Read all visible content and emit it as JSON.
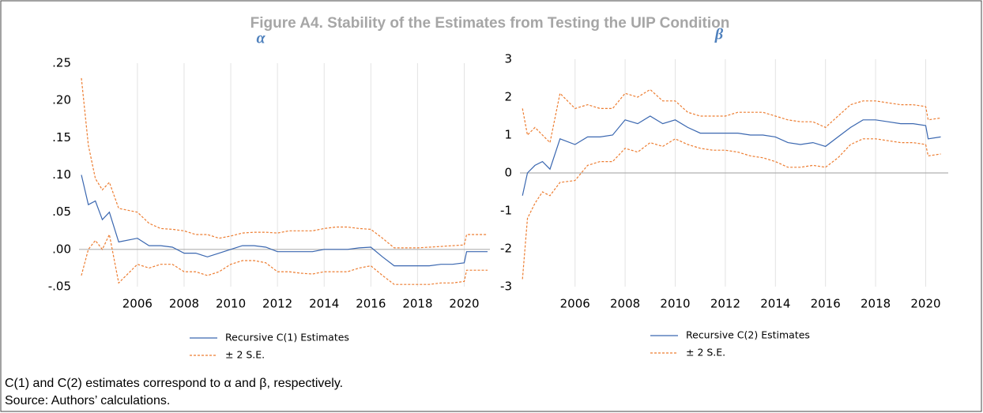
{
  "title": "Figure A4. Stability of the Estimates from Testing the UIP Condition",
  "notes": [
    "C(1) and C(2) estimates correspond to α and β, respectively.",
    "Source: Authors’ calculations."
  ],
  "chart_data": [
    {
      "type": "line",
      "title": "α",
      "x": [
        2003.6,
        2003.9,
        2004.2,
        2004.5,
        2004.8,
        2005.2,
        2006,
        2006.5,
        2007,
        2007.5,
        2008,
        2008.5,
        2009,
        2009.5,
        2010,
        2010.5,
        2011,
        2011.5,
        2012,
        2012.5,
        2013,
        2013.5,
        2014,
        2014.5,
        2015,
        2015.5,
        2016,
        2016.5,
        2017,
        2017.5,
        2018,
        2018.5,
        2019,
        2019.5,
        2020,
        2020.1,
        2021.0
      ],
      "series": [
        {
          "name": "Recursive C(1) Estimates",
          "color": "#3a67b0",
          "values": [
            0.1,
            0.06,
            0.065,
            0.04,
            0.05,
            0.01,
            0.015,
            0.005,
            0.005,
            0.003,
            -0.005,
            -0.005,
            -0.01,
            -0.005,
            0,
            0.005,
            0.005,
            0.003,
            -0.003,
            -0.003,
            -0.003,
            -0.003,
            0,
            0,
            0,
            0.002,
            0.003,
            -0.01,
            -0.022,
            -0.022,
            -0.022,
            -0.022,
            -0.02,
            -0.02,
            -0.018,
            -0.003,
            -0.003
          ]
        },
        {
          "name": "± 2 S.E.",
          "color": "#ed7d31",
          "upper": [
            0.23,
            0.14,
            0.095,
            0.08,
            0.09,
            0.055,
            0.05,
            0.035,
            0.028,
            0.027,
            0.025,
            0.02,
            0.02,
            0.015,
            0.018,
            0.022,
            0.023,
            0.023,
            0.022,
            0.025,
            0.025,
            0.025,
            0.028,
            0.03,
            0.03,
            0.028,
            0.027,
            0.015,
            0.002,
            0.002,
            0.002,
            0.003,
            0.004,
            0.005,
            0.006,
            0.02,
            0.02
          ],
          "lower": [
            -0.035,
            0.0,
            0.012,
            0.0,
            0.02,
            -0.045,
            -0.02,
            -0.025,
            -0.02,
            -0.02,
            -0.03,
            -0.03,
            -0.035,
            -0.03,
            -0.02,
            -0.015,
            -0.015,
            -0.018,
            -0.03,
            -0.03,
            -0.032,
            -0.033,
            -0.03,
            -0.03,
            -0.03,
            -0.025,
            -0.022,
            -0.035,
            -0.047,
            -0.047,
            -0.047,
            -0.047,
            -0.045,
            -0.045,
            -0.043,
            -0.028,
            -0.028
          ]
        }
      ],
      "xlim": [
        2003.5,
        2021.1
      ],
      "xticks": [
        2006,
        2008,
        2010,
        2012,
        2014,
        2016,
        2018,
        2020
      ],
      "ylim": [
        -0.05,
        0.25
      ],
      "yticks": [
        {
          "value": -0.05,
          "label": "-.05"
        },
        {
          "value": 0,
          "label": ".00"
        },
        {
          "value": 0.05,
          "label": ".05"
        },
        {
          "value": 0.1,
          "label": ".10"
        },
        {
          "value": 0.15,
          "label": ".15"
        },
        {
          "value": 0.2,
          "label": ".20"
        },
        {
          "value": 0.25,
          "label": ".25"
        }
      ],
      "grid": "x",
      "zero_line": true
    },
    {
      "type": "line",
      "title": "β",
      "x": [
        2003.9,
        2004.1,
        2004.4,
        2004.7,
        2005.0,
        2005.4,
        2006,
        2006.5,
        2007,
        2007.5,
        2008,
        2008.5,
        2009,
        2009.5,
        2010,
        2010.5,
        2011,
        2011.5,
        2012,
        2012.5,
        2013,
        2013.5,
        2014,
        2014.5,
        2015,
        2015.5,
        2016,
        2016.5,
        2017,
        2017.5,
        2018,
        2018.5,
        2019,
        2019.5,
        2020,
        2020.1,
        2020.6
      ],
      "series": [
        {
          "name": "Recursive C(2) Estimates",
          "color": "#3a67b0",
          "values": [
            -0.6,
            0.0,
            0.2,
            0.3,
            0.1,
            0.9,
            0.75,
            0.95,
            0.95,
            1.0,
            1.4,
            1.3,
            1.5,
            1.3,
            1.4,
            1.2,
            1.05,
            1.05,
            1.05,
            1.05,
            1.0,
            1.0,
            0.95,
            0.8,
            0.75,
            0.8,
            0.7,
            0.95,
            1.2,
            1.4,
            1.4,
            1.35,
            1.3,
            1.3,
            1.25,
            0.9,
            0.95
          ]
        },
        {
          "name": "± 2 S.E.",
          "color": "#ed7d31",
          "upper": [
            1.7,
            1.0,
            1.2,
            1.0,
            0.8,
            2.1,
            1.7,
            1.8,
            1.7,
            1.7,
            2.1,
            2.0,
            2.2,
            1.9,
            1.9,
            1.6,
            1.5,
            1.5,
            1.5,
            1.6,
            1.6,
            1.6,
            1.5,
            1.4,
            1.35,
            1.35,
            1.2,
            1.5,
            1.8,
            1.9,
            1.9,
            1.85,
            1.8,
            1.8,
            1.75,
            1.4,
            1.45
          ],
          "lower": [
            -2.8,
            -1.2,
            -0.8,
            -0.5,
            -0.6,
            -0.25,
            -0.2,
            0.2,
            0.3,
            0.3,
            0.65,
            0.55,
            0.8,
            0.7,
            0.9,
            0.75,
            0.65,
            0.6,
            0.6,
            0.55,
            0.45,
            0.4,
            0.3,
            0.15,
            0.15,
            0.2,
            0.15,
            0.4,
            0.75,
            0.9,
            0.9,
            0.85,
            0.8,
            0.8,
            0.75,
            0.45,
            0.5
          ]
        }
      ],
      "xlim": [
        2003.8,
        2020.9
      ],
      "xticks": [
        2006,
        2008,
        2010,
        2012,
        2014,
        2016,
        2018,
        2020
      ],
      "ylim": [
        -3,
        3
      ],
      "yticks": [
        -3,
        -2,
        -1,
        0,
        1,
        2,
        3
      ],
      "grid": "x",
      "zero_line": true
    }
  ]
}
